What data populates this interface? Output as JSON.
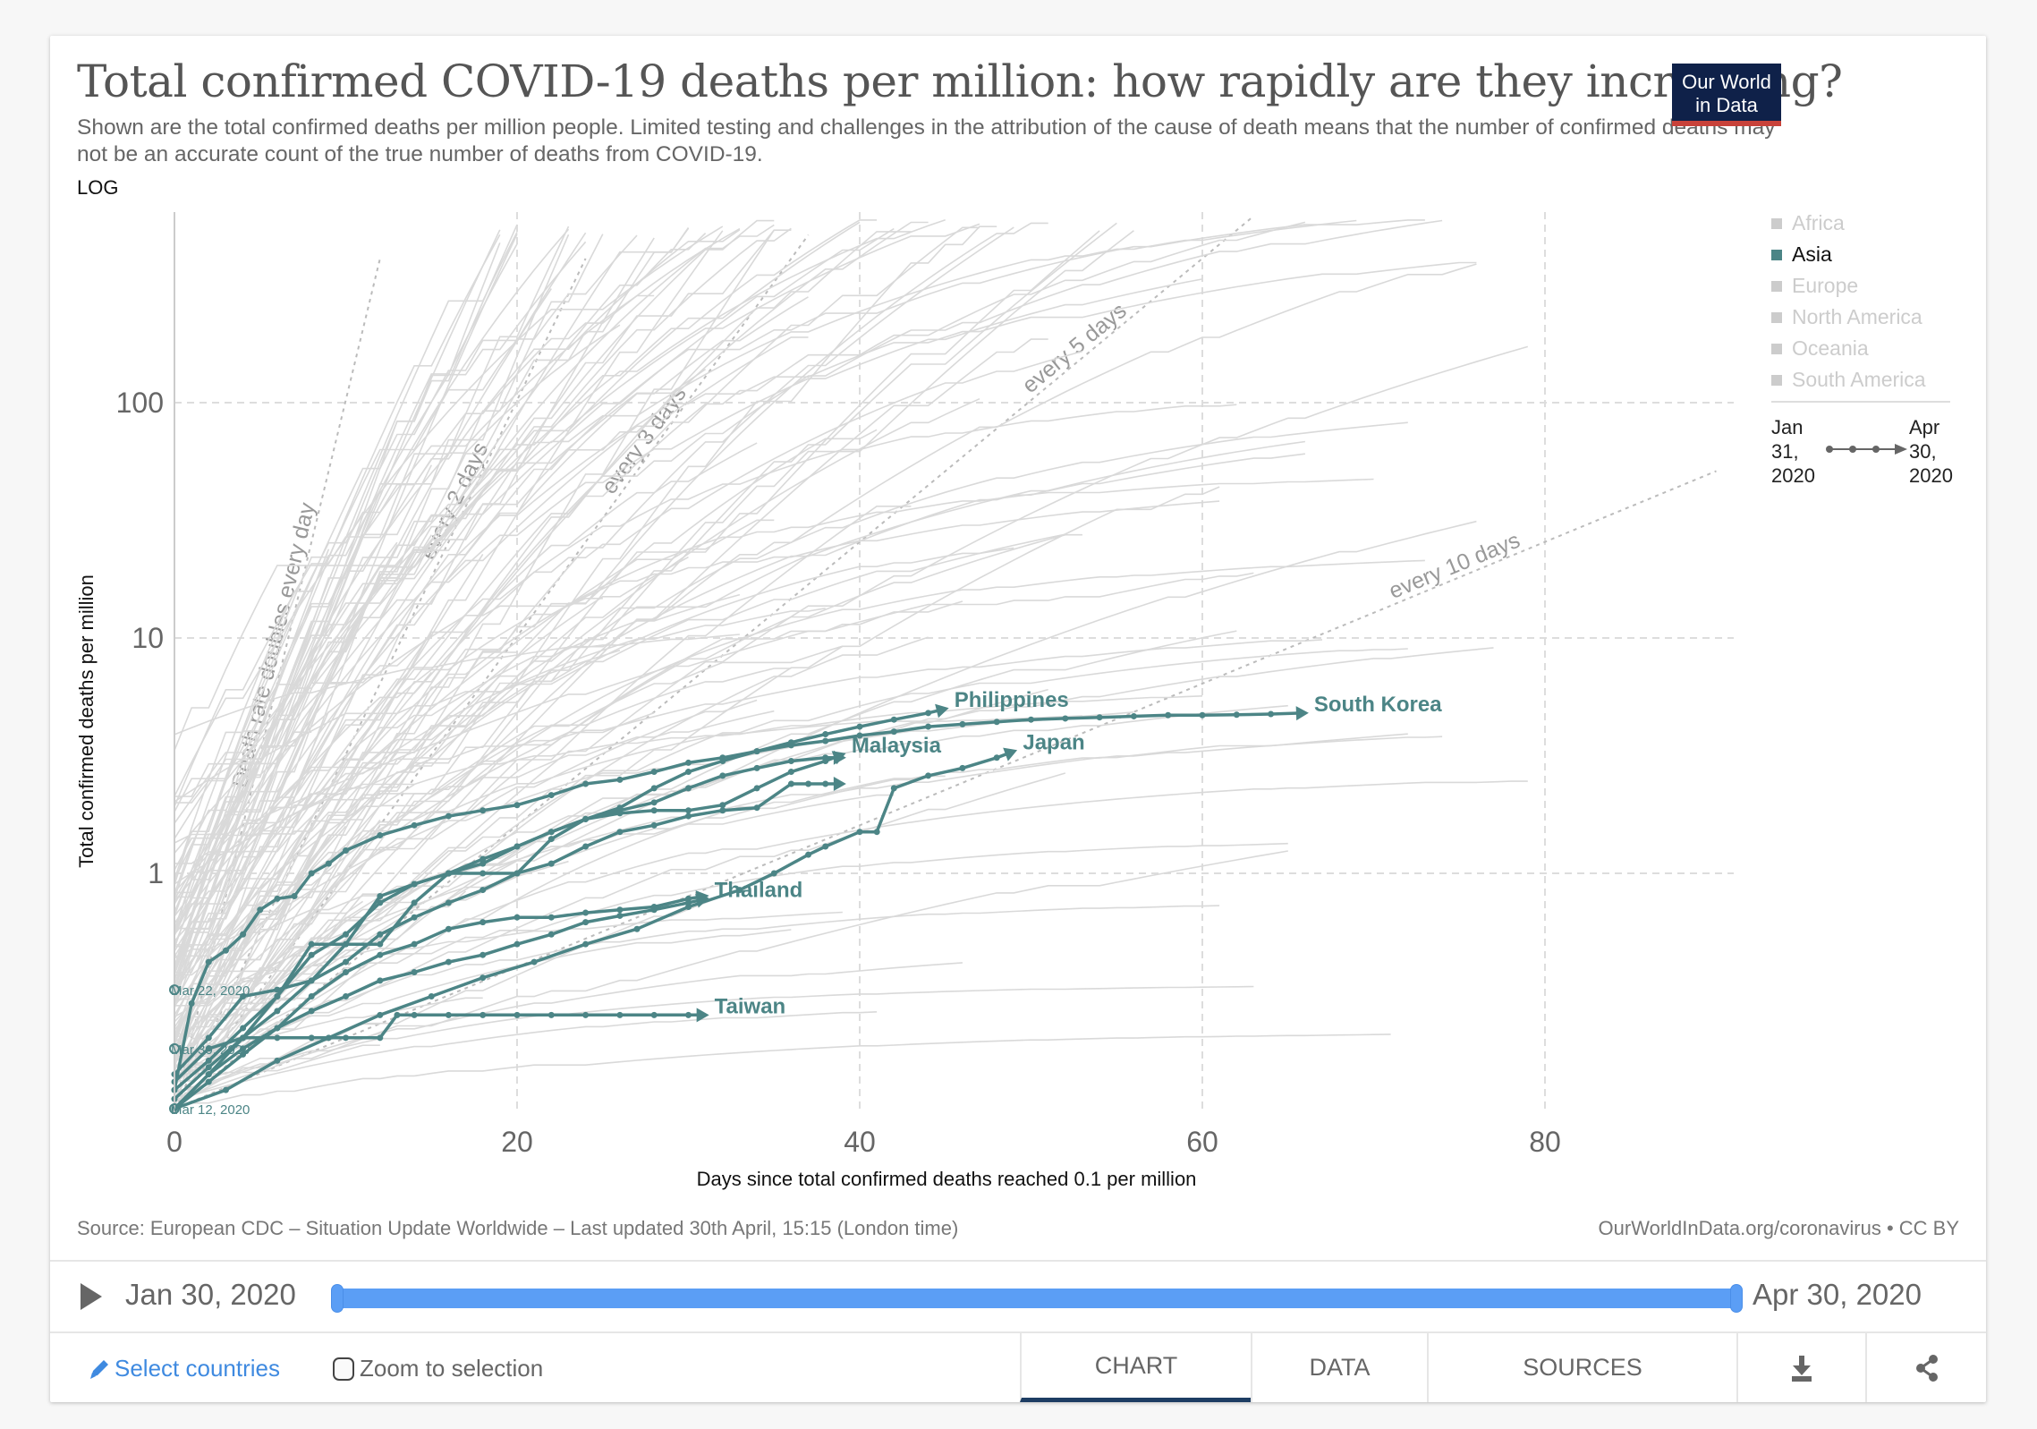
{
  "header": {
    "title": "Total confirmed COVID-19 deaths per million: how rapidly are they increasing?",
    "subtitle": "Shown are the total confirmed deaths per million people. Limited testing and challenges in the attribution of the cause of death means that the number of confirmed deaths may not be an accurate count of the true number of deaths from COVID-19.",
    "scale_toggle": "LOG",
    "logo_line1": "Our World",
    "logo_line2": "in Data"
  },
  "legend": {
    "items": [
      {
        "label": "Africa",
        "active": false
      },
      {
        "label": "Asia",
        "active": true
      },
      {
        "label": "Europe",
        "active": false
      },
      {
        "label": "North America",
        "active": false
      },
      {
        "label": "Oceania",
        "active": false
      },
      {
        "label": "South America",
        "active": false
      }
    ],
    "start_date_lines": [
      "Jan",
      "31,",
      "2020"
    ],
    "end_date_lines": [
      "Apr",
      "30,",
      "2020"
    ]
  },
  "colors": {
    "asia": "#4c8586",
    "background_lines": "#d9d9d9",
    "guide_lines": "#bbbbbb",
    "timeline": "#5b9ef5",
    "logo_bg": "#0f2149",
    "logo_bar": "#c8423a"
  },
  "chart_data": {
    "type": "line",
    "title": "Total confirmed COVID-19 deaths per million: how rapidly are they increasing?",
    "xlabel": "Days since total confirmed deaths reached 0.1 per million",
    "ylabel": "Total confirmed deaths per million",
    "yscale": "log",
    "xlim": [
      0,
      91
    ],
    "ylim": [
      0.1,
      650
    ],
    "xticks": [
      0,
      20,
      40,
      60,
      80
    ],
    "yticks": [
      1,
      10,
      100
    ],
    "ytick_labels": [
      "1",
      "10",
      "100"
    ],
    "xtick_labels": [
      "0",
      "20",
      "40",
      "60",
      "80"
    ],
    "grid": true,
    "legend_position": "right",
    "guide_lines": [
      {
        "label": "Death rate doubles every day",
        "doubling_days": 1,
        "end_day": 12
      },
      {
        "label": "every 2 days",
        "doubling_days": 2,
        "end_day": 24
      },
      {
        "label": "every 3 days",
        "doubling_days": 3,
        "end_day": 37
      },
      {
        "label": "every 5 days",
        "doubling_days": 5,
        "end_day": 63
      },
      {
        "label": "every 10 days",
        "doubling_days": 10,
        "end_day": 90
      }
    ],
    "start_annotations": [
      {
        "label": "Mar 22, 2020",
        "y": 0.32
      },
      {
        "label": "Mar 30, 2020",
        "y": 0.18
      },
      {
        "label": "Mar 12, 2020",
        "y": 0.1
      }
    ],
    "series": [
      {
        "name": "South Korea",
        "labeled": true,
        "x": [
          0,
          1,
          2,
          3,
          4,
          5,
          6,
          7,
          8,
          9,
          10,
          12,
          14,
          16,
          18,
          20,
          22,
          24,
          26,
          28,
          30,
          32,
          34,
          36,
          38,
          40,
          42,
          44,
          46,
          48,
          50,
          52,
          54,
          56,
          58,
          60,
          62,
          64,
          66
        ],
        "y": [
          0.12,
          0.28,
          0.42,
          0.47,
          0.55,
          0.7,
          0.78,
          0.8,
          1.0,
          1.1,
          1.25,
          1.45,
          1.6,
          1.75,
          1.85,
          1.95,
          2.15,
          2.4,
          2.5,
          2.7,
          2.95,
          3.1,
          3.3,
          3.5,
          3.65,
          3.85,
          4.0,
          4.2,
          4.3,
          4.4,
          4.5,
          4.55,
          4.6,
          4.65,
          4.7,
          4.7,
          4.72,
          4.75,
          4.8
        ]
      },
      {
        "name": "Philippines",
        "labeled": true,
        "x": [
          0,
          2,
          4,
          6,
          8,
          10,
          12,
          14,
          16,
          18,
          20,
          22,
          24,
          26,
          28,
          30,
          32,
          34,
          36,
          38,
          40,
          42,
          44,
          45
        ],
        "y": [
          0.1,
          0.14,
          0.2,
          0.3,
          0.45,
          0.55,
          0.75,
          0.9,
          1.0,
          1.15,
          1.3,
          1.5,
          1.7,
          1.9,
          2.3,
          2.7,
          3.0,
          3.3,
          3.6,
          3.9,
          4.2,
          4.5,
          4.8,
          5.0
        ]
      },
      {
        "name": "Malaysia",
        "labeled": true,
        "x": [
          0,
          2,
          4,
          6,
          8,
          10,
          12,
          14,
          16,
          18,
          20,
          22,
          24,
          26,
          28,
          30,
          32,
          34,
          36,
          38,
          39
        ],
        "y": [
          0.12,
          0.16,
          0.22,
          0.3,
          0.5,
          0.5,
          0.5,
          0.75,
          1.0,
          1.0,
          1.0,
          1.4,
          1.7,
          1.8,
          1.85,
          1.85,
          1.95,
          2.3,
          2.7,
          3.0,
          3.2
        ]
      },
      {
        "name": "Japan",
        "labeled": true,
        "x": [
          0,
          3,
          6,
          9,
          12,
          15,
          18,
          21,
          24,
          27,
          30,
          33,
          35,
          37,
          38,
          40,
          41,
          42,
          44,
          46,
          48,
          49
        ],
        "y": [
          0.1,
          0.12,
          0.16,
          0.2,
          0.25,
          0.3,
          0.36,
          0.42,
          0.5,
          0.58,
          0.72,
          0.85,
          1.0,
          1.2,
          1.3,
          1.5,
          1.5,
          2.3,
          2.6,
          2.8,
          3.1,
          3.3
        ]
      },
      {
        "name": "Thailand",
        "labeled": true,
        "x": [
          0,
          2,
          4,
          6,
          8,
          10,
          12,
          14,
          16,
          18,
          20,
          22,
          24,
          26,
          28,
          30,
          31
        ],
        "y": [
          0.1,
          0.14,
          0.18,
          0.22,
          0.26,
          0.3,
          0.35,
          0.38,
          0.42,
          0.45,
          0.5,
          0.55,
          0.62,
          0.66,
          0.7,
          0.75,
          0.78
        ]
      },
      {
        "name": "Taiwan",
        "labeled": true,
        "x": [
          0,
          2,
          4,
          6,
          8,
          10,
          12,
          13,
          14,
          16,
          18,
          20,
          22,
          24,
          26,
          28,
          30,
          31
        ],
        "y": [
          0.13,
          0.18,
          0.2,
          0.2,
          0.2,
          0.2,
          0.2,
          0.25,
          0.25,
          0.25,
          0.25,
          0.25,
          0.25,
          0.25,
          0.25,
          0.25,
          0.25,
          0.25
        ]
      },
      {
        "name": "Asia series A",
        "labeled": false,
        "x": [
          0,
          2,
          4,
          6,
          8,
          10,
          12,
          14,
          16,
          18,
          20,
          22,
          24,
          26,
          28,
          30,
          32,
          34,
          36,
          38,
          39
        ],
        "y": [
          0.14,
          0.2,
          0.3,
          0.32,
          0.35,
          0.5,
          0.8,
          0.9,
          1.0,
          1.1,
          1.3,
          1.5,
          1.7,
          1.85,
          2.0,
          2.3,
          2.6,
          2.8,
          3.0,
          3.1,
          3.1
        ]
      },
      {
        "name": "Asia series B",
        "labeled": false,
        "x": [
          0,
          2,
          4,
          6,
          8,
          10,
          12,
          14,
          16,
          18,
          20,
          22,
          24,
          26,
          28,
          30,
          32,
          34,
          36,
          37,
          38,
          39
        ],
        "y": [
          0.11,
          0.15,
          0.2,
          0.26,
          0.35,
          0.42,
          0.55,
          0.65,
          0.75,
          0.85,
          1.0,
          1.1,
          1.3,
          1.5,
          1.6,
          1.75,
          1.85,
          1.9,
          2.4,
          2.4,
          2.4,
          2.4
        ]
      },
      {
        "name": "Asia series C",
        "labeled": false,
        "x": [
          0,
          2,
          4,
          6,
          8,
          10,
          12,
          14,
          16,
          18,
          20,
          22,
          24,
          26,
          28,
          30,
          31
        ],
        "y": [
          0.1,
          0.13,
          0.17,
          0.22,
          0.3,
          0.38,
          0.45,
          0.5,
          0.58,
          0.62,
          0.65,
          0.65,
          0.68,
          0.7,
          0.72,
          0.78,
          0.8
        ]
      }
    ]
  },
  "footer": {
    "source": "Source: European CDC – Situation Update Worldwide – Last updated 30th April, 15:15 (London time)",
    "url": "OurWorldInData.org/coronavirus • CC BY"
  },
  "timeline": {
    "start_label": "Jan 30, 2020",
    "end_label": "Apr 30, 2020",
    "range_start_fraction": 0,
    "range_end_fraction": 1
  },
  "controls": {
    "select_countries": "Select countries",
    "zoom_to_selection": "Zoom to selection",
    "zoom_checked": false,
    "tabs": [
      {
        "label": "CHART",
        "active": true
      },
      {
        "label": "DATA",
        "active": false
      },
      {
        "label": "SOURCES",
        "active": false
      }
    ],
    "download_icon": "download-icon",
    "share_icon": "share-icon"
  }
}
